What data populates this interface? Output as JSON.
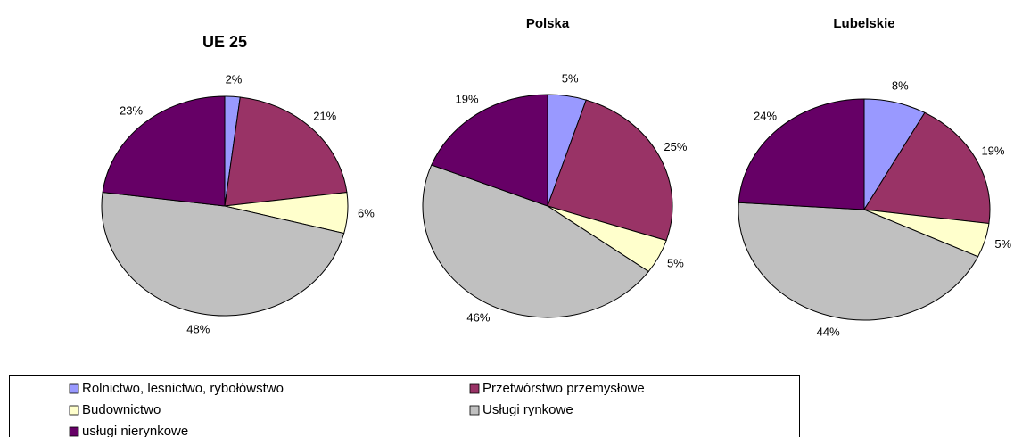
{
  "legend": {
    "categories": [
      "Rolnictwo, lesnictwo, rybołówstwo",
      "Przetwórstwo przemysłowe",
      "Budownictwo",
      "Usługi rynkowe",
      "usługi nierynkowe"
    ],
    "colors": [
      "#9999ff",
      "#993366",
      "#ffffcc",
      "#c0c0c0",
      "#660066"
    ]
  },
  "chart_data": [
    {
      "type": "pie",
      "title": "UE 25",
      "values": [
        2,
        21,
        6,
        48,
        23
      ],
      "value_labels": [
        "2%",
        "21%",
        "6%",
        "48%",
        "23%"
      ]
    },
    {
      "type": "pie",
      "title": "Polska",
      "values": [
        5,
        25,
        5,
        46,
        19
      ],
      "value_labels": [
        "5%",
        "25%",
        "5%",
        "46%",
        "19%"
      ]
    },
    {
      "type": "pie",
      "title": "Lubelskie",
      "values": [
        8,
        19,
        5,
        44,
        24
      ],
      "value_labels": [
        "8%",
        "19%",
        "5%",
        "44%",
        "24%"
      ]
    }
  ]
}
